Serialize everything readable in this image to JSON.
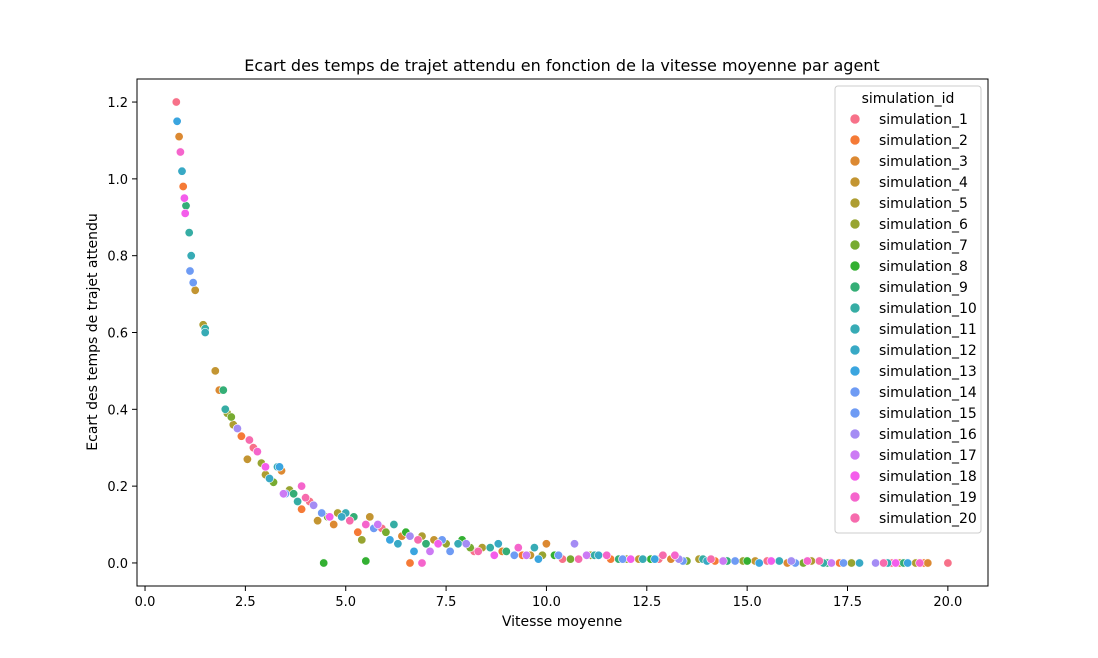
{
  "chart_data": {
    "type": "scatter",
    "title": "Ecart des temps de trajet attendu en fonction de la vitesse moyenne par agent",
    "xlabel": "Vitesse moyenne",
    "ylabel": "Ecart des temps de trajet attendu",
    "xlim": [
      -0.2,
      21.0
    ],
    "ylim": [
      -0.06,
      1.26
    ],
    "xticks": [
      0.0,
      2.5,
      5.0,
      7.5,
      10.0,
      12.5,
      15.0,
      17.5,
      20.0
    ],
    "xtick_labels": [
      "0.0",
      "2.5",
      "5.0",
      "7.5",
      "10.0",
      "12.5",
      "15.0",
      "17.5",
      "20.0"
    ],
    "yticks": [
      0.0,
      0.2,
      0.4,
      0.6,
      0.8,
      1.0,
      1.2
    ],
    "ytick_labels": [
      "0.0",
      "0.2",
      "0.4",
      "0.6",
      "0.8",
      "1.0",
      "1.2"
    ],
    "grid": false,
    "legend": {
      "title": "simulation_id",
      "placement": "top-right",
      "entries": [
        "simulation_1",
        "simulation_2",
        "simulation_3",
        "simulation_4",
        "simulation_5",
        "simulation_6",
        "simulation_7",
        "simulation_8",
        "simulation_9",
        "simulation_10",
        "simulation_11",
        "simulation_12",
        "simulation_13",
        "simulation_14",
        "simulation_15",
        "simulation_16",
        "simulation_17",
        "simulation_18",
        "simulation_19",
        "simulation_20"
      ]
    },
    "series": [
      {
        "name": "simulation_1",
        "color": "#f77189",
        "points": [
          [
            0.78,
            1.2
          ],
          [
            2.7,
            0.3
          ],
          [
            4.1,
            0.16
          ],
          [
            5.9,
            0.09
          ],
          [
            8.2,
            0.03
          ],
          [
            10.4,
            0.01
          ],
          [
            12.8,
            0.01
          ],
          [
            15.5,
            0.005
          ],
          [
            18.6,
            0.0
          ],
          [
            20.0,
            0.0
          ]
        ]
      },
      {
        "name": "simulation_2",
        "color": "#f57a36",
        "points": [
          [
            0.95,
            0.98
          ],
          [
            2.4,
            0.33
          ],
          [
            3.9,
            0.14
          ],
          [
            5.3,
            0.08
          ],
          [
            6.6,
            0.0
          ],
          [
            9.4,
            0.02
          ],
          [
            11.6,
            0.01
          ],
          [
            14.2,
            0.005
          ],
          [
            17.3,
            0.0
          ],
          [
            19.4,
            0.0
          ]
        ]
      },
      {
        "name": "simulation_3",
        "color": "#dc8932",
        "points": [
          [
            0.85,
            1.11
          ],
          [
            1.85,
            0.45
          ],
          [
            3.4,
            0.24
          ],
          [
            4.7,
            0.1
          ],
          [
            6.4,
            0.07
          ],
          [
            8.9,
            0.03
          ],
          [
            10.0,
            0.05
          ],
          [
            13.1,
            0.01
          ],
          [
            16.0,
            0.0
          ],
          [
            19.5,
            0.0
          ]
        ]
      },
      {
        "name": "simulation_4",
        "color": "#c39532",
        "points": [
          [
            1.25,
            0.71
          ],
          [
            1.75,
            0.5
          ],
          [
            2.55,
            0.27
          ],
          [
            4.3,
            0.11
          ],
          [
            5.6,
            0.12
          ],
          [
            7.2,
            0.06
          ],
          [
            9.6,
            0.02
          ],
          [
            12.3,
            0.01
          ],
          [
            15.2,
            0.005
          ],
          [
            18.8,
            0.0
          ]
        ]
      },
      {
        "name": "simulation_5",
        "color": "#ae9d31",
        "points": [
          [
            1.45,
            0.62
          ],
          [
            2.2,
            0.36
          ],
          [
            3.0,
            0.23
          ],
          [
            4.8,
            0.13
          ],
          [
            6.9,
            0.07
          ],
          [
            8.4,
            0.04
          ],
          [
            11.1,
            0.02
          ],
          [
            13.8,
            0.01
          ],
          [
            16.6,
            0.005
          ],
          [
            19.2,
            0.0
          ]
        ]
      },
      {
        "name": "simulation_6",
        "color": "#97a431",
        "points": [
          [
            2.05,
            0.39
          ],
          [
            2.9,
            0.26
          ],
          [
            3.6,
            0.19
          ],
          [
            5.4,
            0.06
          ],
          [
            7.5,
            0.05
          ],
          [
            9.9,
            0.02
          ],
          [
            12.0,
            0.01
          ],
          [
            14.9,
            0.005
          ],
          [
            17.6,
            0.0
          ]
        ]
      },
      {
        "name": "simulation_7",
        "color": "#77ab31",
        "points": [
          [
            2.15,
            0.38
          ],
          [
            3.2,
            0.21
          ],
          [
            4.55,
            0.12
          ],
          [
            6.0,
            0.08
          ],
          [
            8.1,
            0.04
          ],
          [
            10.6,
            0.01
          ],
          [
            13.5,
            0.005
          ],
          [
            16.4,
            0.0
          ]
        ]
      },
      {
        "name": "simulation_8",
        "color": "#33b032",
        "points": [
          [
            4.45,
            0.0
          ],
          [
            5.5,
            0.005
          ],
          [
            6.5,
            0.08
          ],
          [
            7.9,
            0.06
          ],
          [
            10.2,
            0.02
          ],
          [
            12.6,
            0.01
          ],
          [
            15.0,
            0.005
          ]
        ]
      },
      {
        "name": "simulation_9",
        "color": "#34ae76",
        "points": [
          [
            1.02,
            0.93
          ],
          [
            1.95,
            0.45
          ],
          [
            3.7,
            0.18
          ],
          [
            5.2,
            0.12
          ],
          [
            7.0,
            0.05
          ],
          [
            9.0,
            0.03
          ],
          [
            11.8,
            0.01
          ],
          [
            14.5,
            0.005
          ],
          [
            17.0,
            0.0
          ],
          [
            18.9,
            0.0
          ]
        ]
      },
      {
        "name": "simulation_10",
        "color": "#36ada4",
        "points": [
          [
            1.1,
            0.86
          ],
          [
            1.5,
            0.61
          ],
          [
            2.0,
            0.4
          ],
          [
            3.8,
            0.16
          ],
          [
            6.2,
            0.1
          ],
          [
            8.6,
            0.04
          ],
          [
            11.2,
            0.02
          ],
          [
            13.9,
            0.01
          ],
          [
            16.9,
            0.0
          ]
        ]
      },
      {
        "name": "simulation_11",
        "color": "#37abb5",
        "points": [
          [
            1.15,
            0.8
          ],
          [
            1.5,
            0.6
          ],
          [
            3.3,
            0.25
          ],
          [
            5.0,
            0.13
          ],
          [
            7.8,
            0.05
          ],
          [
            9.7,
            0.04
          ],
          [
            12.4,
            0.01
          ],
          [
            15.8,
            0.005
          ],
          [
            18.5,
            0.0
          ]
        ]
      },
      {
        "name": "simulation_12",
        "color": "#38a9c5",
        "points": [
          [
            0.92,
            1.02
          ],
          [
            3.1,
            0.22
          ],
          [
            4.9,
            0.12
          ],
          [
            6.3,
            0.05
          ],
          [
            8.8,
            0.05
          ],
          [
            11.3,
            0.02
          ],
          [
            14.0,
            0.005
          ],
          [
            17.8,
            0.0
          ]
        ]
      },
      {
        "name": "simulation_13",
        "color": "#3aa5df",
        "points": [
          [
            0.8,
            1.15
          ],
          [
            3.35,
            0.25
          ],
          [
            6.1,
            0.06
          ],
          [
            6.7,
            0.03
          ],
          [
            9.8,
            0.01
          ],
          [
            12.7,
            0.01
          ],
          [
            15.3,
            0.0
          ],
          [
            19.0,
            0.0
          ]
        ]
      },
      {
        "name": "simulation_14",
        "color": "#6e9bf4",
        "points": [
          [
            1.12,
            0.76
          ],
          [
            1.2,
            0.73
          ],
          [
            3.5,
            0.18
          ],
          [
            5.7,
            0.09
          ],
          [
            7.6,
            0.03
          ],
          [
            10.3,
            0.02
          ],
          [
            13.4,
            0.005
          ],
          [
            16.2,
            0.0
          ]
        ]
      },
      {
        "name": "simulation_15",
        "color": "#6e9bf4",
        "points": [
          [
            2.3,
            0.35
          ],
          [
            4.4,
            0.13
          ],
          [
            7.4,
            0.06
          ],
          [
            9.2,
            0.02
          ],
          [
            11.9,
            0.01
          ],
          [
            14.7,
            0.005
          ],
          [
            17.4,
            0.0
          ]
        ]
      },
      {
        "name": "simulation_16",
        "color": "#a48cf4",
        "points": [
          [
            2.3,
            0.35
          ],
          [
            4.2,
            0.15
          ],
          [
            6.6,
            0.07
          ],
          [
            8.0,
            0.05
          ],
          [
            10.7,
            0.05
          ],
          [
            13.3,
            0.01
          ],
          [
            16.1,
            0.005
          ],
          [
            18.2,
            0.0
          ]
        ]
      },
      {
        "name": "simulation_17",
        "color": "#cc7af4",
        "points": [
          [
            3.45,
            0.18
          ],
          [
            5.8,
            0.1
          ],
          [
            7.1,
            0.03
          ],
          [
            9.5,
            0.02
          ],
          [
            11.0,
            0.02
          ],
          [
            14.4,
            0.005
          ],
          [
            17.1,
            0.0
          ]
        ]
      },
      {
        "name": "simulation_18",
        "color": "#f45deb",
        "points": [
          [
            0.98,
            0.95
          ],
          [
            1.0,
            0.91
          ],
          [
            3.0,
            0.25
          ],
          [
            4.6,
            0.12
          ],
          [
            7.3,
            0.05
          ],
          [
            8.7,
            0.02
          ],
          [
            12.1,
            0.01
          ],
          [
            15.6,
            0.005
          ],
          [
            18.7,
            0.0
          ]
        ]
      },
      {
        "name": "simulation_19",
        "color": "#f565cc",
        "points": [
          [
            0.88,
            1.07
          ],
          [
            2.8,
            0.29
          ],
          [
            3.9,
            0.2
          ],
          [
            5.5,
            0.1
          ],
          [
            6.9,
            0.0
          ],
          [
            9.3,
            0.04
          ],
          [
            11.5,
            0.02
          ],
          [
            13.2,
            0.02
          ],
          [
            16.5,
            0.005
          ],
          [
            19.3,
            0.0
          ]
        ]
      },
      {
        "name": "simulation_20",
        "color": "#f66bad",
        "points": [
          [
            2.6,
            0.32
          ],
          [
            4.0,
            0.17
          ],
          [
            5.1,
            0.11
          ],
          [
            6.8,
            0.06
          ],
          [
            8.3,
            0.03
          ],
          [
            10.8,
            0.01
          ],
          [
            12.9,
            0.02
          ],
          [
            14.1,
            0.01
          ],
          [
            16.8,
            0.005
          ],
          [
            18.4,
            0.0
          ]
        ]
      }
    ]
  }
}
